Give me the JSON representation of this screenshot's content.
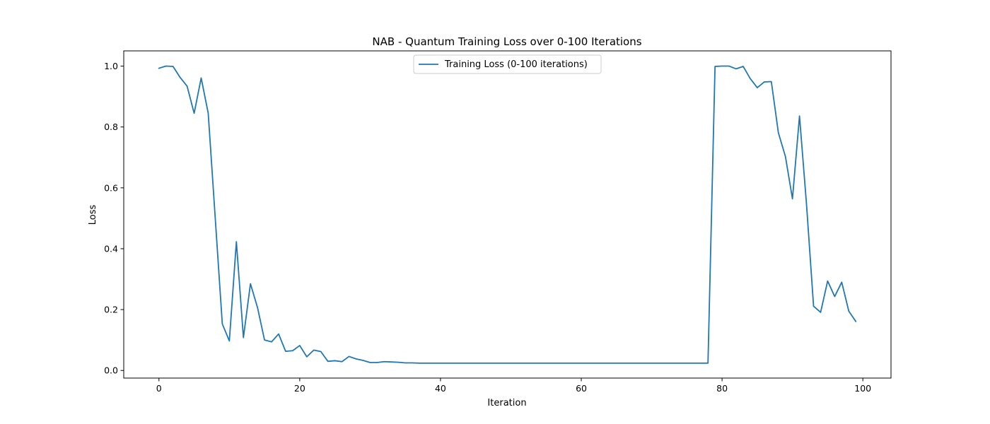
{
  "chart_data": {
    "type": "line",
    "title": "NAB - Quantum Training Loss over 0-100 Iterations",
    "xlabel": "Iteration",
    "ylabel": "Loss",
    "xlim": [
      -5,
      104
    ],
    "ylim": [
      -0.025,
      1.05
    ],
    "xticks": [
      0,
      20,
      40,
      60,
      80,
      100
    ],
    "yticks": [
      0.0,
      0.2,
      0.4,
      0.6,
      0.8,
      1.0
    ],
    "xtick_labels": [
      "0",
      "20",
      "40",
      "60",
      "80",
      "100"
    ],
    "ytick_labels": [
      "0.0",
      "0.2",
      "0.4",
      "0.6",
      "0.8",
      "1.0"
    ],
    "grid": false,
    "legend_position": "upper center",
    "series": [
      {
        "name": "Training Loss (0-100 iterations)",
        "color": "#1f77b4",
        "x": [
          0,
          1,
          2,
          3,
          4,
          5,
          6,
          7,
          8,
          9,
          10,
          11,
          12,
          13,
          14,
          15,
          16,
          17,
          18,
          19,
          20,
          21,
          22,
          23,
          24,
          25,
          26,
          27,
          28,
          29,
          30,
          31,
          32,
          33,
          34,
          35,
          36,
          37,
          38,
          39,
          40,
          41,
          42,
          43,
          44,
          45,
          46,
          47,
          48,
          49,
          50,
          51,
          52,
          53,
          54,
          55,
          56,
          57,
          58,
          59,
          60,
          61,
          62,
          63,
          64,
          65,
          66,
          67,
          68,
          69,
          70,
          71,
          72,
          73,
          74,
          75,
          76,
          77,
          78,
          79,
          80,
          81,
          82,
          83,
          84,
          85,
          86,
          87,
          88,
          89,
          90,
          91,
          92,
          93,
          94,
          95,
          96,
          97,
          98,
          99
        ],
        "values": [
          0.993,
          1.0,
          0.999,
          0.963,
          0.934,
          0.845,
          0.961,
          0.845,
          0.5,
          0.153,
          0.097,
          0.423,
          0.108,
          0.285,
          0.207,
          0.1,
          0.094,
          0.12,
          0.063,
          0.065,
          0.082,
          0.045,
          0.067,
          0.062,
          0.03,
          0.032,
          0.029,
          0.046,
          0.038,
          0.033,
          0.026,
          0.026,
          0.029,
          0.028,
          0.027,
          0.025,
          0.025,
          0.024,
          0.024,
          0.024,
          0.024,
          0.024,
          0.024,
          0.024,
          0.024,
          0.024,
          0.024,
          0.024,
          0.024,
          0.024,
          0.024,
          0.024,
          0.024,
          0.024,
          0.024,
          0.024,
          0.024,
          0.024,
          0.024,
          0.024,
          0.024,
          0.024,
          0.024,
          0.024,
          0.024,
          0.024,
          0.024,
          0.024,
          0.024,
          0.024,
          0.024,
          0.024,
          0.024,
          0.024,
          0.024,
          0.024,
          0.024,
          0.024,
          0.024,
          0.999,
          1.0,
          1.0,
          0.991,
          0.999,
          0.959,
          0.929,
          0.948,
          0.949,
          0.781,
          0.703,
          0.564,
          0.836,
          0.545,
          0.211,
          0.191,
          0.294,
          0.243,
          0.29,
          0.195,
          0.161
        ]
      }
    ]
  }
}
